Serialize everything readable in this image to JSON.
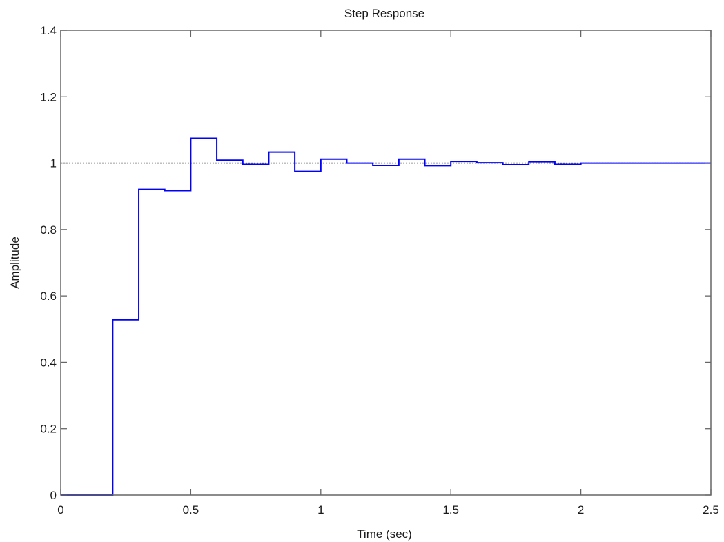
{
  "chart_data": {
    "type": "line",
    "title": "Step Response",
    "xlabel": "Time (sec)",
    "ylabel": "Amplitude",
    "xlim": [
      0,
      2.5
    ],
    "ylim": [
      0,
      1.4
    ],
    "x_ticks": [
      "0",
      "0.5",
      "1",
      "1.5",
      "2",
      "2.5"
    ],
    "y_ticks": [
      "0",
      "0.2",
      "0.4",
      "0.6",
      "0.8",
      "1",
      "1.2",
      "1.4"
    ],
    "grid": false,
    "legend": "none",
    "reference_line": {
      "y": 1.0,
      "style": "dotted",
      "color": "#000000"
    },
    "series": [
      {
        "color": "#0000ff",
        "style": "step",
        "x": [
          0,
          0.1,
          0.2,
          0.3,
          0.4,
          0.5,
          0.6,
          0.7,
          0.8,
          0.9,
          1.0,
          1.1,
          1.2,
          1.3,
          1.4,
          1.5,
          1.6,
          1.7,
          1.8,
          1.9,
          2.0,
          2.5
        ],
        "y": [
          0,
          0,
          0.528,
          0.921,
          0.917,
          1.075,
          1.009,
          0.996,
          1.033,
          0.975,
          1.012,
          1.0,
          0.993,
          1.012,
          0.992,
          1.005,
          1.001,
          0.995,
          1.004,
          0.996,
          1.0,
          1.0
        ]
      }
    ]
  }
}
